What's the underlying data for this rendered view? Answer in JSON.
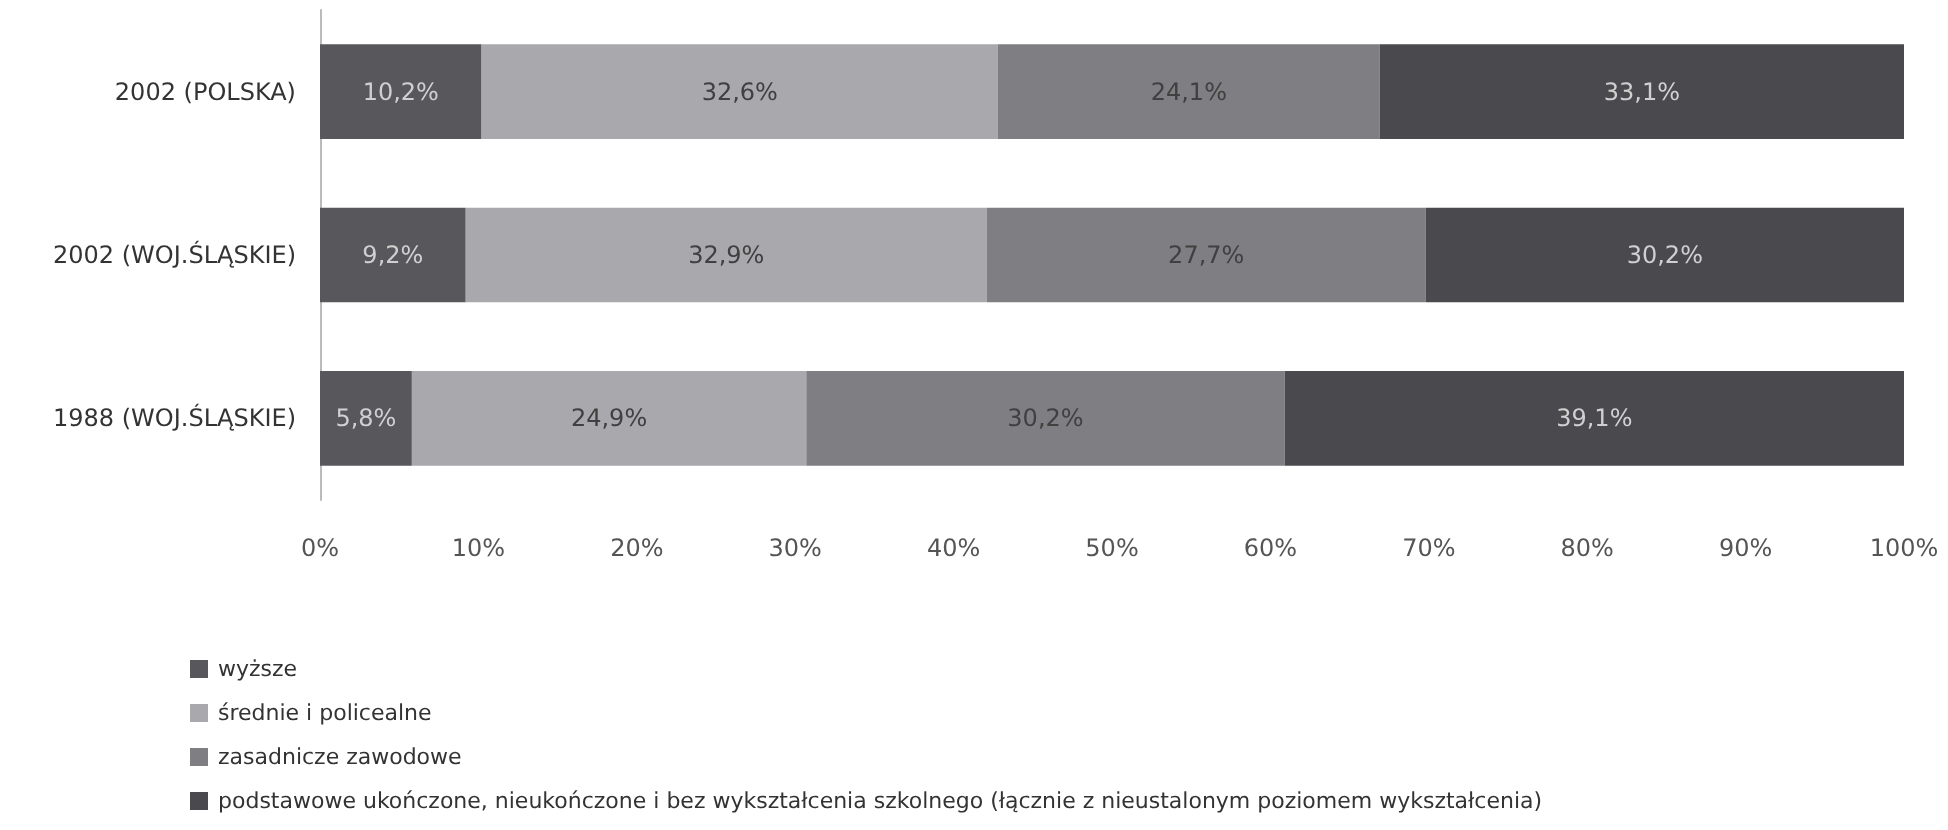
{
  "chart_data": {
    "type": "bar",
    "orientation": "horizontal",
    "stacked": true,
    "categories": [
      "2002 (POLSKA)",
      "2002 (WOJ.ŚLĄSKIE)",
      "1988 (WOJ.ŚLĄSKIE)"
    ],
    "series": [
      {
        "name": "wyższe",
        "color": "#58585c",
        "values": [
          10.2,
          9.2,
          5.8
        ],
        "value_labels": [
          "10,2%",
          "9,2%",
          "5,8%"
        ]
      },
      {
        "name": "średnie i policealne",
        "color": "#a9a9ad",
        "values": [
          32.6,
          32.9,
          24.9
        ],
        "value_labels": [
          "32,6%",
          "32,9%",
          "24,9%"
        ]
      },
      {
        "name": "zasadnicze zawodowe",
        "color": "#7f7f83",
        "values": [
          24.1,
          27.7,
          30.2
        ],
        "value_labels": [
          "24,1%",
          "27,7%",
          "30,2%"
        ]
      },
      {
        "name": "podstawowe ukończone, nieukończone i bez wykształcenia szkolnego (łącznie z nieustalonym poziomem wykształcenia)",
        "color": "#4a4a4e",
        "values": [
          33.1,
          30.2,
          39.1
        ],
        "value_labels": [
          "33,1%",
          "30,2%",
          "39,1%"
        ]
      }
    ],
    "xlim": [
      0,
      100
    ],
    "xticks": [
      {
        "value": 0,
        "label": "0%"
      },
      {
        "value": 10,
        "label": "10%"
      },
      {
        "value": 20,
        "label": "20%"
      },
      {
        "value": 30,
        "label": "30%"
      },
      {
        "value": 40,
        "label": "40%"
      },
      {
        "value": 50,
        "label": "50%"
      },
      {
        "value": 60,
        "label": "60%"
      },
      {
        "value": 70,
        "label": "70%"
      },
      {
        "value": 80,
        "label": "80%"
      },
      {
        "value": 90,
        "label": "90%"
      },
      {
        "value": 100,
        "label": "100%"
      }
    ],
    "grid": false,
    "legend": "bottom left"
  }
}
